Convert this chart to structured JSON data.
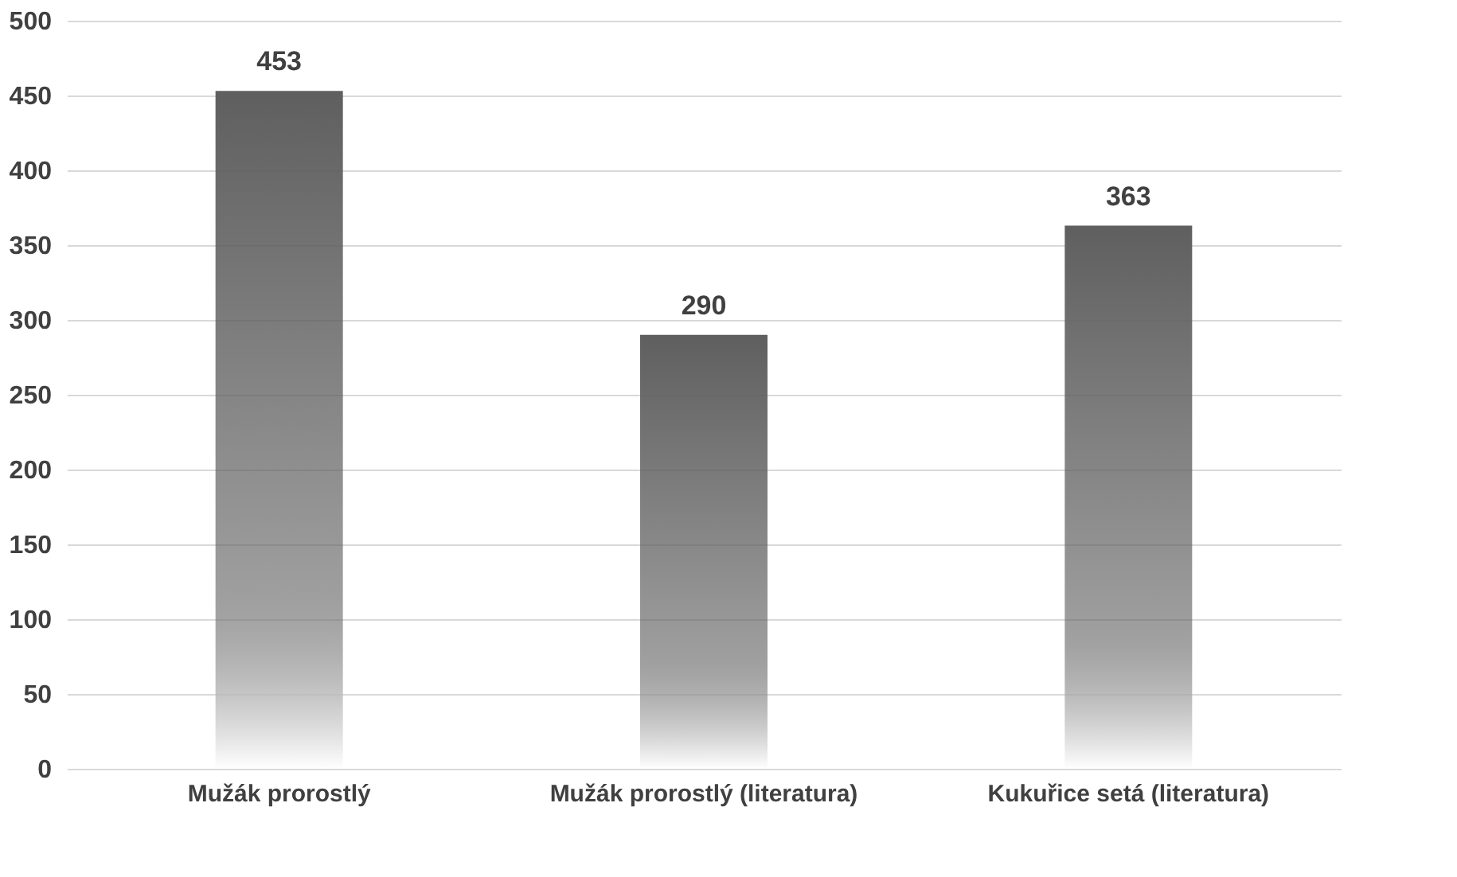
{
  "chart_data": {
    "type": "bar",
    "categories": [
      "Mužák prorostlý",
      "Mužák prorostlý (literatura)",
      "Kukuřice setá (literatura)"
    ],
    "values": [
      453,
      290,
      363
    ],
    "color": "#5f5f5f",
    "ylim": [
      0,
      500
    ],
    "yticks": [
      0,
      50,
      100,
      150,
      200,
      250,
      300,
      350,
      400,
      450,
      500
    ],
    "grid": "y",
    "data_labels": true
  }
}
